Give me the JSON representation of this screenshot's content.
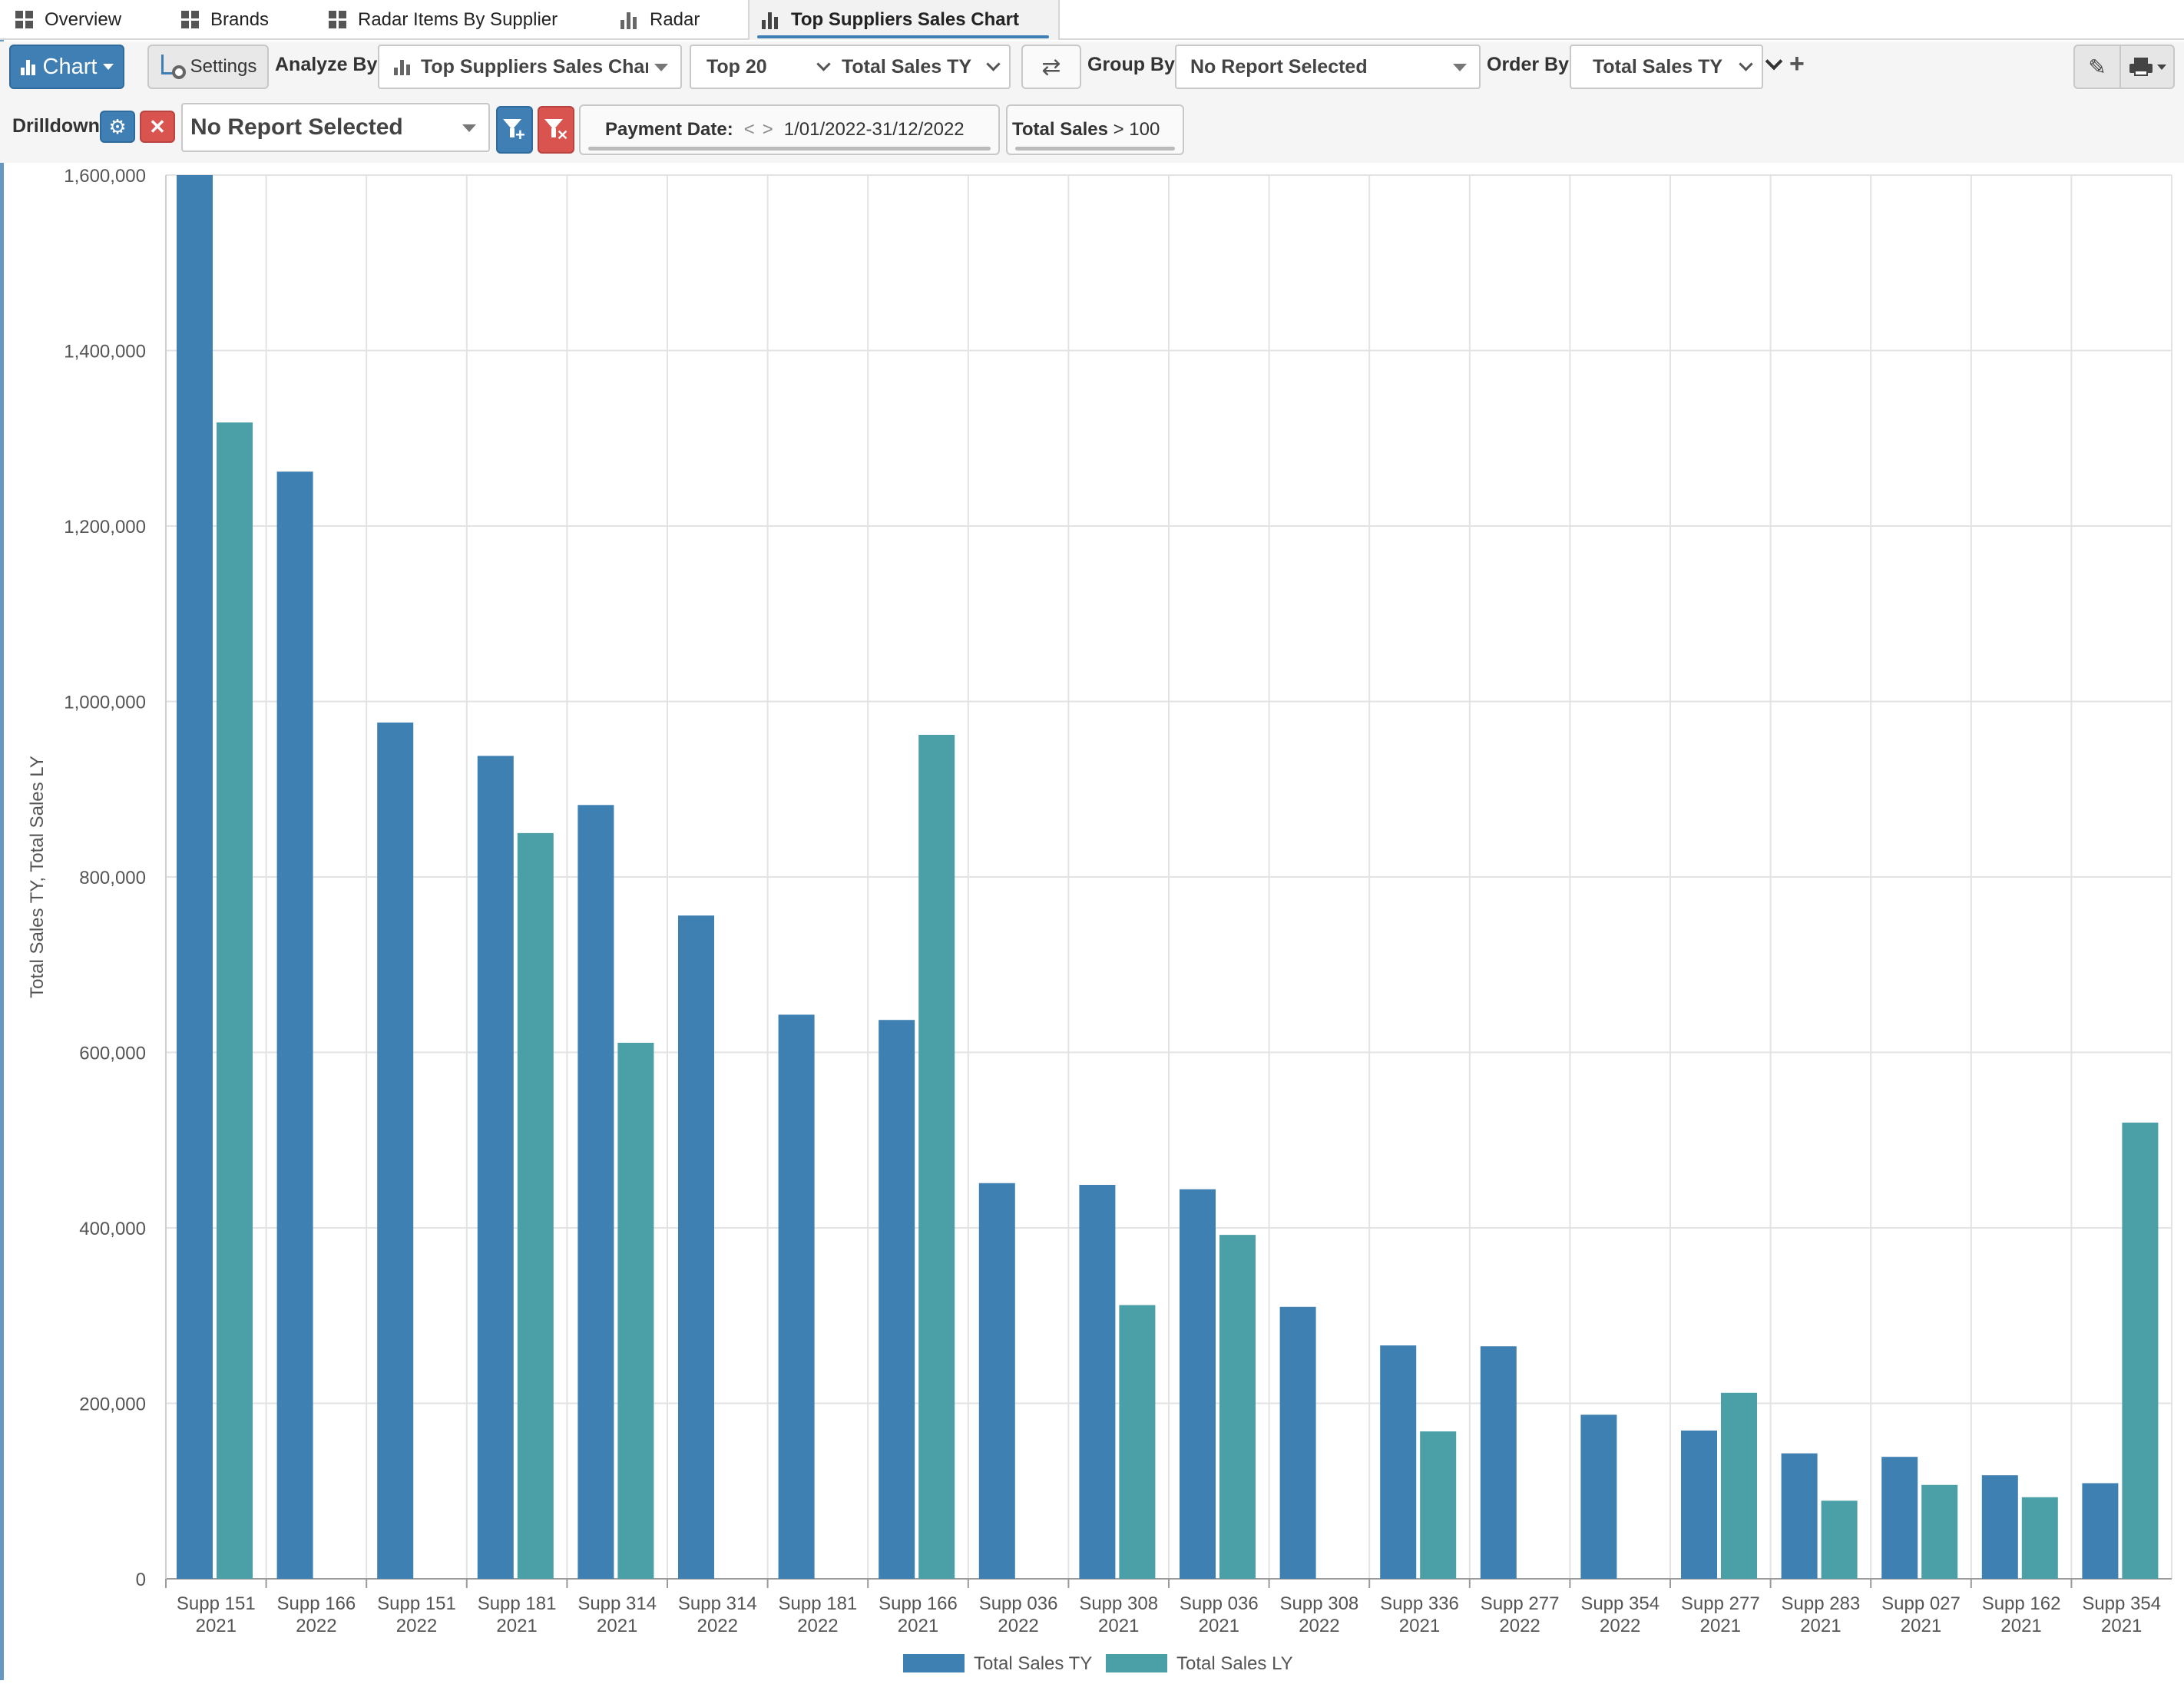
{
  "tabs": [
    {
      "label": "Overview",
      "icon": "grid-icon",
      "active": false
    },
    {
      "label": "Brands",
      "icon": "grid-icon",
      "active": false
    },
    {
      "label": "Radar Items By Supplier",
      "icon": "grid-icon",
      "active": false
    },
    {
      "label": "Radar",
      "icon": "bar-chart-icon",
      "active": false
    },
    {
      "label": "Top Suppliers Sales Chart",
      "icon": "bar-chart-icon",
      "active": true
    }
  ],
  "toolbar": {
    "chart_button": "Chart",
    "settings_button": "Settings",
    "analyze_by_label": "Analyze By",
    "analyze_by_value": "Top Suppliers Sales Chart",
    "top_n_value": "Top 20",
    "measure_value": "Total Sales TY",
    "group_by_label": "Group By",
    "group_by_value": "No Report Selected",
    "order_by_label": "Order By",
    "order_by_value": "Total Sales TY"
  },
  "drilldown": {
    "label": "Drilldown",
    "report_value": "No Report Selected",
    "payment_date_label": "Payment Date:",
    "payment_date_value": "1/01/2022-31/12/2022",
    "total_sales_filter_field": "Total Sales",
    "total_sales_filter_rest": " > 100"
  },
  "colors": {
    "accent": "#3f7fb4",
    "series_ty": "#3f80b2",
    "series_ly": "#4aa0a6",
    "danger": "#d9534f"
  },
  "chart_data": {
    "type": "bar",
    "ylabel": "Total Sales TY, Total Sales LY",
    "ylim": [
      0,
      1600000
    ],
    "yticks": [
      0,
      200000,
      400000,
      600000,
      800000,
      1000000,
      1200000,
      1400000,
      1600000
    ],
    "ytick_labels": [
      "0",
      "200,000",
      "400,000",
      "600,000",
      "800,000",
      "1,000,000",
      "1,200,000",
      "1,400,000",
      "1,600,000"
    ],
    "grid": true,
    "legend_position": "bottom",
    "categories": [
      [
        "Supp 151",
        "2021"
      ],
      [
        "Supp 166",
        "2022"
      ],
      [
        "Supp 151",
        "2022"
      ],
      [
        "Supp 181",
        "2021"
      ],
      [
        "Supp 314",
        "2021"
      ],
      [
        "Supp 314",
        "2022"
      ],
      [
        "Supp 181",
        "2022"
      ],
      [
        "Supp 166",
        "2021"
      ],
      [
        "Supp 036",
        "2022"
      ],
      [
        "Supp 308",
        "2021"
      ],
      [
        "Supp 036",
        "2021"
      ],
      [
        "Supp 308",
        "2022"
      ],
      [
        "Supp 336",
        "2021"
      ],
      [
        "Supp 277",
        "2022"
      ],
      [
        "Supp 354",
        "2022"
      ],
      [
        "Supp 277",
        "2021"
      ],
      [
        "Supp 283",
        "2021"
      ],
      [
        "Supp 027",
        "2021"
      ],
      [
        "Supp 162",
        "2021"
      ],
      [
        "Supp 354",
        "2021"
      ]
    ],
    "series": [
      {
        "name": "Total Sales TY",
        "color": "#3f80b2",
        "values": [
          1600000,
          1262000,
          976000,
          938000,
          882000,
          756000,
          643000,
          637000,
          451000,
          449000,
          444000,
          310000,
          266000,
          265000,
          187000,
          169000,
          143000,
          139000,
          118000,
          109000
        ]
      },
      {
        "name": "Total Sales LY",
        "color": "#4aa0a6",
        "values": [
          1318000,
          0,
          0,
          850000,
          611000,
          0,
          0,
          962000,
          0,
          312000,
          392000,
          0,
          168000,
          0,
          0,
          212000,
          89000,
          107000,
          93000,
          520000
        ]
      }
    ]
  }
}
